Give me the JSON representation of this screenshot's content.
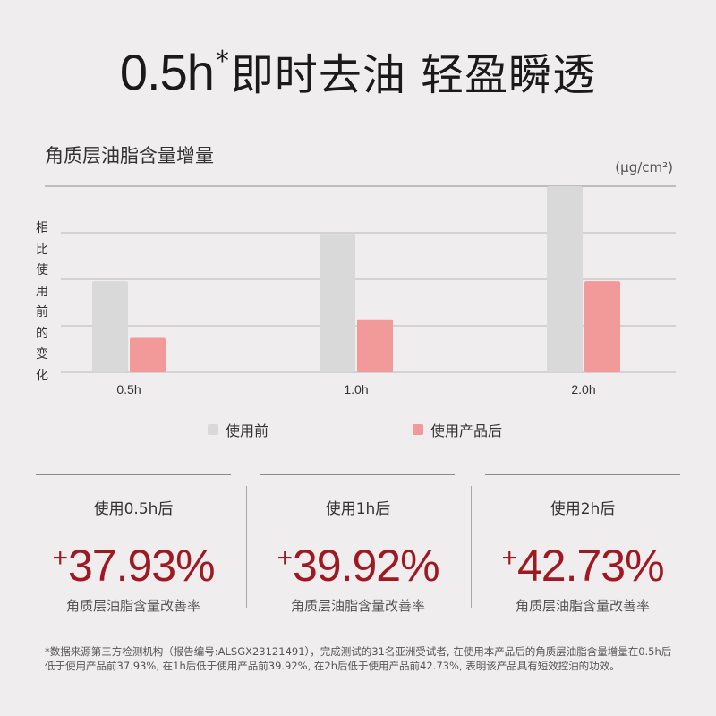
{
  "headline": {
    "time": "0.5h",
    "asterisk": "*",
    "text": "即时去油 轻盈瞬透"
  },
  "chart_data": {
    "type": "bar",
    "title": "角质层油脂含量增量",
    "unit": "(µg/cm²)",
    "ylabel": "相比使用前的变化",
    "categories": [
      "0.5h",
      "1.0h",
      "2.0h"
    ],
    "series": [
      {
        "name": "使用前",
        "color": "#d9d9d9",
        "values": [
          0.98,
          1.48,
          2.0
        ]
      },
      {
        "name": "使用产品后",
        "color": "#f2999a",
        "values": [
          0.37,
          0.57,
          0.98
        ]
      }
    ],
    "ylim": [
      0,
      2.0
    ],
    "grid": true,
    "legend": "bottom"
  },
  "stats": [
    {
      "after": "使用0.5h后",
      "plus": "+",
      "value": "37.93%",
      "desc": "角质层油脂含量改善率"
    },
    {
      "after": "使用1h后",
      "plus": "+",
      "value": "39.92%",
      "desc": "角质层油脂含量改善率"
    },
    {
      "after": "使用2h后",
      "plus": "+",
      "value": "42.73%",
      "desc": "角质层油脂含量改善率"
    }
  ],
  "accent_color": "#a01822",
  "footnote": "*数据来源第三方检测机构（报告编号:ALSGX23121491），完成测试的31名亚洲受试者, 在使用本产品后的角质层油脂含量增量在0.5h后低于使用产品前37.93%, 在1h后低于使用产品前39.92%, 在2h后低于使用产品前42.73%, 表明该产品具有短效控油的功效。"
}
